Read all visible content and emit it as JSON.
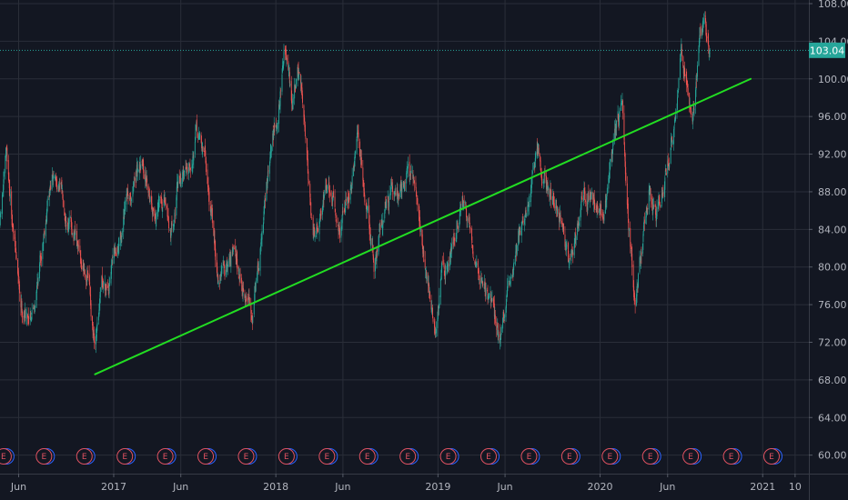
{
  "chart_data": {
    "type": "candlestick",
    "y_axis": {
      "range": [
        59,
        108
      ],
      "ticks": [
        "108.00",
        "104.00",
        "100.00",
        "96.00",
        "92.00",
        "88.00",
        "84.00",
        "80.00",
        "76.00",
        "72.00",
        "68.00",
        "64.00",
        "60.00"
      ],
      "values": [
        108,
        104,
        100,
        96,
        92,
        88,
        84,
        80,
        76,
        72,
        68,
        64,
        60
      ]
    },
    "x_axis": {
      "range": [
        "2016-04-20",
        "2021-04-15"
      ],
      "ticks": [
        {
          "label": "Jun",
          "date": "2016-06-01"
        },
        {
          "label": "2017",
          "date": "2017-01-01"
        },
        {
          "label": "Jun",
          "date": "2017-06-01"
        },
        {
          "label": "2018",
          "date": "2018-01-01"
        },
        {
          "label": "Jun",
          "date": "2018-06-01"
        },
        {
          "label": "2019",
          "date": "2019-01-01"
        },
        {
          "label": "Jun",
          "date": "2019-06-01"
        },
        {
          "label": "2020",
          "date": "2020-01-01"
        },
        {
          "label": "Jun",
          "date": "2020-06-01"
        },
        {
          "label": "2021",
          "date": "2021-01-01"
        },
        {
          "label": "10",
          "date": "2021-03-15"
        }
      ]
    },
    "last_price": {
      "value": 103.04,
      "label": "103.04"
    },
    "price_path": [
      [
        "2016-04-20",
        84.5
      ],
      [
        "2016-05-05",
        91.5
      ],
      [
        "2016-05-20",
        84.0
      ],
      [
        "2016-06-05",
        76.0
      ],
      [
        "2016-06-20",
        75.0
      ],
      [
        "2016-07-05",
        76.5
      ],
      [
        "2016-07-20",
        81.0
      ],
      [
        "2016-08-05",
        87.5
      ],
      [
        "2016-08-20",
        89.5
      ],
      [
        "2016-09-10",
        87.0
      ],
      [
        "2016-10-01",
        84.0
      ],
      [
        "2016-10-20",
        80.0
      ],
      [
        "2016-11-05",
        79.5
      ],
      [
        "2016-11-20",
        70.0
      ],
      [
        "2016-12-05",
        77.0
      ],
      [
        "2016-12-20",
        79.0
      ],
      [
        "2017-01-10",
        81.0
      ],
      [
        "2017-01-25",
        85.0
      ],
      [
        "2017-02-15",
        89.5
      ],
      [
        "2017-03-05",
        91.5
      ],
      [
        "2017-03-20",
        89.0
      ],
      [
        "2017-04-05",
        86.0
      ],
      [
        "2017-04-25",
        86.5
      ],
      [
        "2017-05-10",
        84.0
      ],
      [
        "2017-05-25",
        88.5
      ],
      [
        "2017-06-15",
        91.0
      ],
      [
        "2017-07-05",
        94.5
      ],
      [
        "2017-07-25",
        92.0
      ],
      [
        "2017-08-10",
        84.5
      ],
      [
        "2017-08-25",
        79.0
      ],
      [
        "2017-09-10",
        80.0
      ],
      [
        "2017-09-25",
        82.0
      ],
      [
        "2017-10-10",
        80.5
      ],
      [
        "2017-10-25",
        77.0
      ],
      [
        "2017-11-10",
        75.5
      ],
      [
        "2017-11-25",
        81.0
      ],
      [
        "2017-12-10",
        88.0
      ],
      [
        "2017-12-25",
        93.0
      ],
      [
        "2018-01-10",
        98.5
      ],
      [
        "2018-01-20",
        104.0
      ],
      [
        "2018-02-05",
        96.0
      ],
      [
        "2018-02-20",
        100.0
      ],
      [
        "2018-03-10",
        94.0
      ],
      [
        "2018-03-25",
        84.0
      ],
      [
        "2018-04-10",
        86.5
      ],
      [
        "2018-04-25",
        89.0
      ],
      [
        "2018-05-10",
        87.5
      ],
      [
        "2018-05-25",
        84.0
      ],
      [
        "2018-06-15",
        88.0
      ],
      [
        "2018-07-05",
        93.0
      ],
      [
        "2018-07-25",
        86.0
      ],
      [
        "2018-08-10",
        80.5
      ],
      [
        "2018-08-25",
        84.0
      ],
      [
        "2018-09-10",
        88.0
      ],
      [
        "2018-09-25",
        87.5
      ],
      [
        "2018-10-10",
        88.5
      ],
      [
        "2018-10-25",
        91.5
      ],
      [
        "2018-11-10",
        87.5
      ],
      [
        "2018-11-25",
        83.0
      ],
      [
        "2018-12-10",
        78.0
      ],
      [
        "2018-12-25",
        73.0
      ],
      [
        "2019-01-10",
        79.0
      ],
      [
        "2019-01-25",
        81.0
      ],
      [
        "2019-02-10",
        84.5
      ],
      [
        "2019-02-25",
        86.5
      ],
      [
        "2019-03-15",
        84.0
      ],
      [
        "2019-04-01",
        80.0
      ],
      [
        "2019-04-20",
        78.0
      ],
      [
        "2019-05-05",
        75.0
      ],
      [
        "2019-05-20",
        72.0
      ],
      [
        "2019-06-05",
        76.0
      ],
      [
        "2019-06-25",
        82.0
      ],
      [
        "2019-07-15",
        86.5
      ],
      [
        "2019-08-01",
        89.0
      ],
      [
        "2019-08-15",
        91.5
      ],
      [
        "2019-09-01",
        88.5
      ],
      [
        "2019-09-20",
        86.0
      ],
      [
        "2019-10-10",
        84.0
      ],
      [
        "2019-10-25",
        80.5
      ],
      [
        "2019-11-10",
        84.0
      ],
      [
        "2019-11-25",
        88.0
      ],
      [
        "2019-12-15",
        87.0
      ],
      [
        "2020-01-05",
        85.0
      ],
      [
        "2020-01-20",
        89.0
      ],
      [
        "2020-02-05",
        94.0
      ],
      [
        "2020-02-20",
        96.5
      ],
      [
        "2020-03-05",
        86.0
      ],
      [
        "2020-03-20",
        76.0
      ],
      [
        "2020-04-05",
        82.5
      ],
      [
        "2020-04-20",
        88.0
      ],
      [
        "2020-05-05",
        84.5
      ],
      [
        "2020-05-20",
        88.0
      ],
      [
        "2020-06-05",
        92.0
      ],
      [
        "2020-06-20",
        96.0
      ],
      [
        "2020-07-01",
        102.5
      ],
      [
        "2020-07-15",
        100.0
      ],
      [
        "2020-07-28",
        97.0
      ],
      [
        "2020-08-10",
        103.5
      ],
      [
        "2020-08-25",
        105.5
      ],
      [
        "2020-09-05",
        103.04
      ]
    ],
    "trendline": {
      "start": [
        "2016-11-20",
        68.6
      ],
      "end": [
        "2020-12-05",
        100.0
      ],
      "color": "#22dd22"
    },
    "earnings_markers": {
      "label": "E",
      "dates": [
        "2016-04-28",
        "2016-07-28",
        "2016-10-27",
        "2017-01-26",
        "2017-04-27",
        "2017-07-27",
        "2017-10-26",
        "2018-01-25",
        "2018-04-26",
        "2018-07-26",
        "2018-10-25",
        "2019-01-24",
        "2019-04-25",
        "2019-07-25",
        "2019-10-24",
        "2020-01-23",
        "2020-04-23",
        "2020-07-23",
        "2020-10-22",
        "2021-01-21"
      ]
    },
    "colors": {
      "background": "#131722",
      "grid": "#2a2e39",
      "up": "#26a69a",
      "down": "#ef5350",
      "price_line": "#26a69a",
      "price_tag_bg": "#26a69a",
      "axis_text": "#b2b5be",
      "earn_stroke": "#e05261",
      "earn_shadow": "#2962ff"
    },
    "grid": true
  }
}
